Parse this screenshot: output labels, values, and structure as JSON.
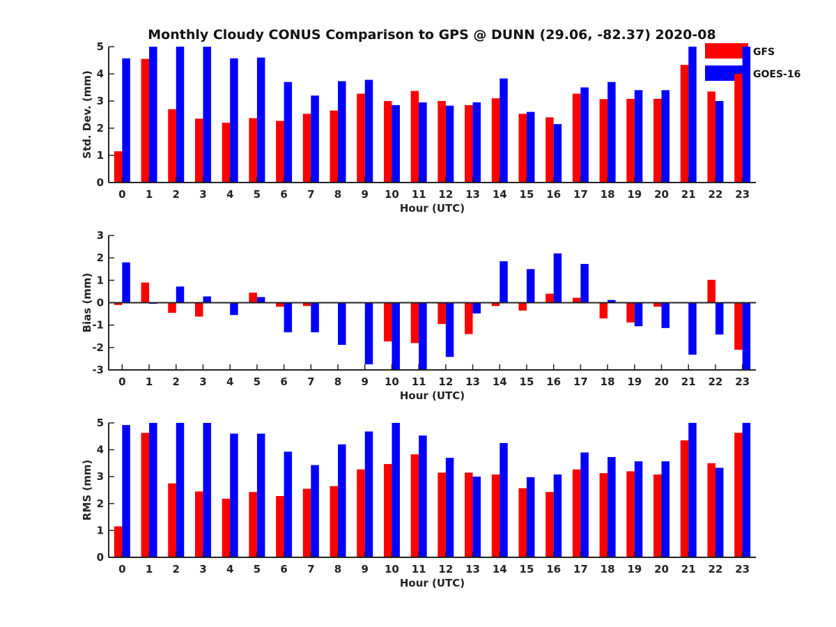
{
  "title": "Monthly Cloudy CONUS Comparison to GPS @ DUNN (29.06, -82.37) 2020-08",
  "colors": {
    "GFS": "#ff0000",
    "GOES-16": "#0000ff",
    "axis": "#222222"
  },
  "legend": {
    "placement": "top-right-outside",
    "entries": [
      "GFS",
      "GOES-16"
    ]
  },
  "chart_data": [
    {
      "type": "bar",
      "xlabel": "Hour (UTC)",
      "ylabel": "Std. Dev. (mm)",
      "ylim": [
        0,
        5
      ],
      "yticks": [
        0,
        1,
        2,
        3,
        4,
        5
      ],
      "categories": [
        "0",
        "1",
        "2",
        "3",
        "4",
        "5",
        "6",
        "7",
        "8",
        "9",
        "10",
        "11",
        "12",
        "13",
        "14",
        "15",
        "16",
        "17",
        "18",
        "19",
        "20",
        "21",
        "22",
        "23"
      ],
      "series": [
        {
          "name": "GFS",
          "values": [
            1.15,
            4.55,
            2.7,
            2.35,
            2.2,
            2.37,
            2.27,
            2.53,
            2.65,
            3.27,
            3.0,
            3.37,
            3.0,
            2.85,
            3.1,
            2.53,
            2.4,
            3.27,
            3.07,
            3.08,
            3.08,
            4.33,
            3.35,
            4.0
          ]
        },
        {
          "name": "GOES-16",
          "values": [
            4.57,
            5.0,
            5.0,
            5.0,
            4.57,
            4.6,
            3.7,
            3.2,
            3.73,
            3.78,
            2.85,
            2.95,
            2.83,
            2.95,
            3.83,
            2.6,
            2.15,
            3.5,
            3.7,
            3.4,
            3.4,
            5.0,
            3.0,
            5.0
          ]
        }
      ]
    },
    {
      "type": "bar",
      "xlabel": "Hour (UTC)",
      "ylabel": "Bias (mm)",
      "ylim": [
        -3,
        3
      ],
      "yticks": [
        -3,
        -2,
        -1,
        0,
        1,
        2,
        3
      ],
      "zero_line": true,
      "categories": [
        "0",
        "1",
        "2",
        "3",
        "4",
        "5",
        "6",
        "7",
        "8",
        "9",
        "10",
        "11",
        "12",
        "13",
        "14",
        "15",
        "16",
        "17",
        "18",
        "19",
        "20",
        "21",
        "22",
        "23"
      ],
      "series": [
        {
          "name": "GFS",
          "values": [
            -0.1,
            0.9,
            -0.45,
            -0.62,
            0.02,
            0.45,
            -0.18,
            -0.15,
            -0.02,
            0.0,
            -1.73,
            -1.8,
            -0.95,
            -1.4,
            -0.15,
            -0.35,
            0.4,
            0.22,
            -0.7,
            -0.88,
            -0.18,
            0.0,
            1.02,
            -2.1
          ]
        },
        {
          "name": "GOES-16",
          "values": [
            1.8,
            -0.05,
            0.72,
            0.28,
            -0.55,
            0.25,
            -1.32,
            -1.32,
            -1.88,
            -2.75,
            -3.0,
            -3.0,
            -2.42,
            -0.48,
            1.85,
            1.5,
            2.2,
            1.73,
            0.12,
            -1.05,
            -1.13,
            -2.32,
            -1.42,
            -3.0
          ]
        }
      ]
    },
    {
      "type": "bar",
      "xlabel": "Hour (UTC)",
      "ylabel": "RMS (mm)",
      "ylim": [
        0,
        5
      ],
      "yticks": [
        0,
        1,
        2,
        3,
        4,
        5
      ],
      "categories": [
        "0",
        "1",
        "2",
        "3",
        "4",
        "5",
        "6",
        "7",
        "8",
        "9",
        "10",
        "11",
        "12",
        "13",
        "14",
        "15",
        "16",
        "17",
        "18",
        "19",
        "20",
        "21",
        "22",
        "23"
      ],
      "series": [
        {
          "name": "GFS",
          "values": [
            1.15,
            4.63,
            2.75,
            2.45,
            2.18,
            2.43,
            2.28,
            2.55,
            2.65,
            3.27,
            3.47,
            3.83,
            3.15,
            3.15,
            3.08,
            2.57,
            2.43,
            3.27,
            3.13,
            3.2,
            3.08,
            4.35,
            3.5,
            4.63
          ]
        },
        {
          "name": "GOES-16",
          "values": [
            4.92,
            5.0,
            5.0,
            5.0,
            4.6,
            4.6,
            3.93,
            3.43,
            4.2,
            4.68,
            5.0,
            4.53,
            3.7,
            3.0,
            4.25,
            2.98,
            3.08,
            3.9,
            3.73,
            3.57,
            3.57,
            5.0,
            3.33,
            5.0
          ]
        }
      ]
    }
  ]
}
